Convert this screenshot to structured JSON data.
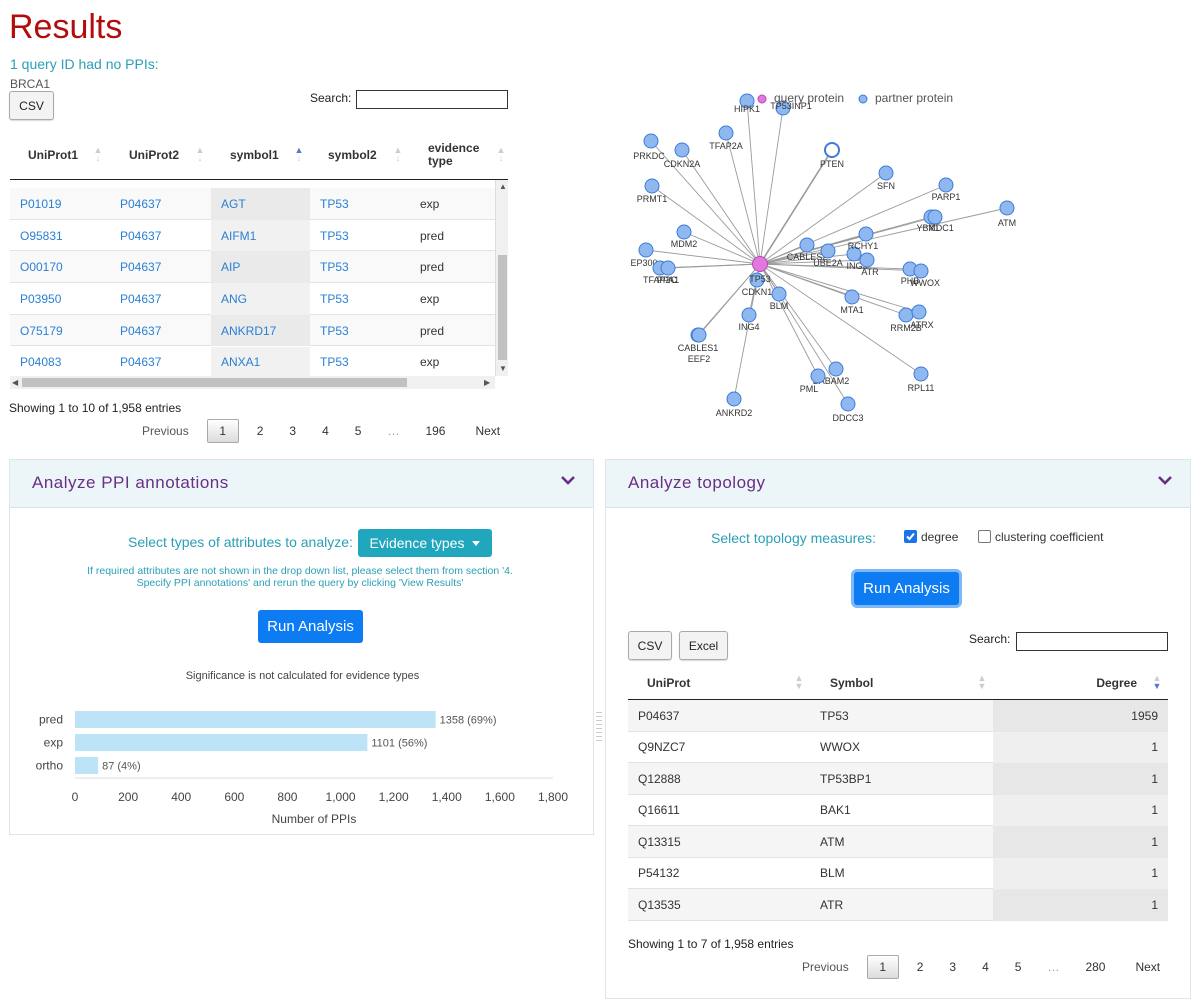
{
  "page_title": "Results",
  "no_ppi": {
    "message": "1 query ID had no PPIs:",
    "id": "BRCA1"
  },
  "ppi_table": {
    "csv_label": "CSV",
    "search_label": "Search:",
    "columns": [
      "UniProt1",
      "UniProt2",
      "symbol1",
      "symbol2",
      "evidence type"
    ],
    "rows": [
      [
        "P01019",
        "P04637",
        "AGT",
        "TP53",
        "exp"
      ],
      [
        "O95831",
        "P04637",
        "AIFM1",
        "TP53",
        "pred"
      ],
      [
        "O00170",
        "P04637",
        "AIP",
        "TP53",
        "pred"
      ],
      [
        "P03950",
        "P04637",
        "ANG",
        "TP53",
        "exp"
      ],
      [
        "O75179",
        "P04637",
        "ANKRD17",
        "TP53",
        "pred"
      ],
      [
        "P04083",
        "P04637",
        "ANXA1",
        "TP53",
        "exp"
      ]
    ],
    "info": "Showing 1 to 10 of 1,958 entries",
    "pager": {
      "previous": "Previous",
      "pages": [
        "1",
        "2",
        "3",
        "4",
        "5",
        "…",
        "196"
      ],
      "next": "Next"
    }
  },
  "network": {
    "legend": {
      "query": "query protein",
      "partner": "partner protein"
    },
    "colors": {
      "query": "#e377e0",
      "partner": "#8fb8f0",
      "partner_border": "#3d7bd6",
      "edge": "#9a9a9a"
    },
    "center": "TP53",
    "nodes": [
      "HIPK1",
      "TP53INP1",
      "PRKDC",
      "CDKN2A",
      "TFAP2A",
      "PTEN",
      "SFN",
      "PARP1",
      "YBX1",
      "MDC1",
      "ATM",
      "PRMT1",
      "MDM2",
      "EP300",
      "TFAP2C",
      "PPA1",
      "CABLES2",
      "UBE2A",
      "ING5",
      "RCHY1",
      "ATR",
      "PHB",
      "WWOX",
      "CDKN1A",
      "BLM",
      "MTA1",
      "RRM2B",
      "ATRX",
      "ING4",
      "CABLES1",
      "EEF2",
      "BABAM2",
      "PML",
      "RPL11",
      "ANKRD2",
      "DDCC3"
    ]
  },
  "annotations_panel": {
    "title": "Analyze PPI annotations",
    "select_label": "Select types of attributes to analyze:",
    "dropdown_value": "Evidence types",
    "hint_line1": "If required attributes are not shown in the drop down list, please select them from section '4.",
    "hint_line2": "Specify PPI annotations' and rerun the query by clicking 'View Results'",
    "run_label": "Run Analysis",
    "significance_note": "Significance is not calculated for evidence types",
    "bar_color": "#bde3f6"
  },
  "chart_data": {
    "type": "bar",
    "orientation": "horizontal",
    "categories": [
      "pred",
      "exp",
      "ortho"
    ],
    "values": [
      1358,
      1101,
      87
    ],
    "data_labels": [
      "1358 (69%)",
      "1101 (56%)",
      "87 (4%)"
    ],
    "xlabel": "Number of PPIs",
    "xlim": [
      0,
      1800
    ],
    "xticks": [
      0,
      200,
      400,
      600,
      800,
      1000,
      1200,
      1400,
      1600,
      1800
    ],
    "xtick_labels": [
      "0",
      "200",
      "400",
      "600",
      "800",
      "1,000",
      "1,200",
      "1,400",
      "1,600",
      "1,800"
    ]
  },
  "topology_panel": {
    "title": "Analyze topology",
    "select_label": "Select topology measures:",
    "measures": [
      {
        "label": "degree",
        "checked": true
      },
      {
        "label": "clustering coefficient",
        "checked": false
      }
    ],
    "run_label": "Run Analysis",
    "csv_label": "CSV",
    "excel_label": "Excel",
    "search_label": "Search:",
    "columns": [
      "UniProt",
      "Symbol",
      "Degree"
    ],
    "rows": [
      [
        "P04637",
        "TP53",
        "1959"
      ],
      [
        "Q9NZC7",
        "WWOX",
        "1"
      ],
      [
        "Q12888",
        "TP53BP1",
        "1"
      ],
      [
        "Q16611",
        "BAK1",
        "1"
      ],
      [
        "Q13315",
        "ATM",
        "1"
      ],
      [
        "P54132",
        "BLM",
        "1"
      ],
      [
        "Q13535",
        "ATR",
        "1"
      ]
    ],
    "info": "Showing 1 to 7 of 1,958 entries",
    "pager": {
      "previous": "Previous",
      "pages": [
        "1",
        "2",
        "3",
        "4",
        "5",
        "…",
        "280"
      ],
      "next": "Next"
    }
  }
}
